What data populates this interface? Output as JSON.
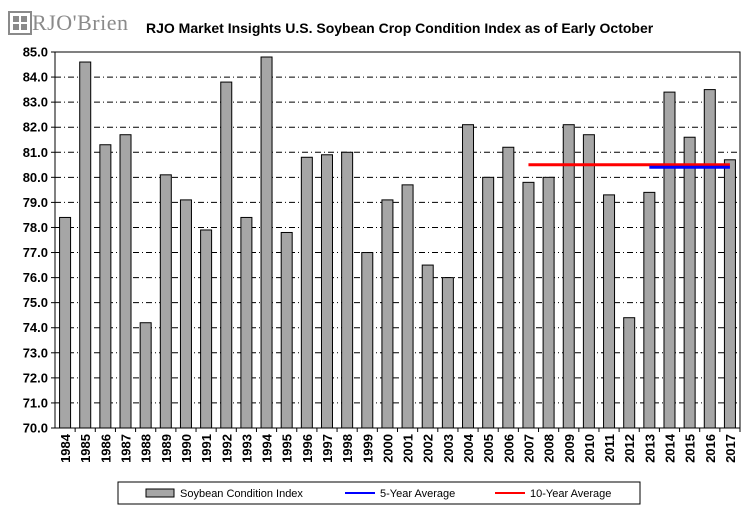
{
  "header": {
    "logo_text": "RJO'Brien",
    "title": "RJO Market Insights U.S. Soybean Crop Condition Index as of Early October"
  },
  "colors": {
    "bar_fill": "#a6a6a6",
    "bar_stroke": "#000000",
    "five_year": "#0000ff",
    "ten_year": "#ff0000",
    "logo_mark": "#8a8a8a"
  },
  "chart_data": {
    "type": "bar",
    "title": "RJO Market Insights U.S. Soybean Crop Condition Index as of Early October",
    "xlabel": "",
    "ylabel": "",
    "ylim": [
      70.0,
      85.0
    ],
    "yticks": [
      "70.0",
      "71.0",
      "72.0",
      "73.0",
      "74.0",
      "75.0",
      "76.0",
      "77.0",
      "78.0",
      "79.0",
      "80.0",
      "81.0",
      "82.0",
      "83.0",
      "84.0",
      "85.0"
    ],
    "grid": true,
    "legend_position": "bottom",
    "categories": [
      "1984",
      "1985",
      "1986",
      "1987",
      "1988",
      "1989",
      "1990",
      "1991",
      "1992",
      "1993",
      "1994",
      "1995",
      "1996",
      "1997",
      "1998",
      "1999",
      "2000",
      "2001",
      "2002",
      "2003",
      "2004",
      "2005",
      "2006",
      "2007",
      "2008",
      "2009",
      "2010",
      "2011",
      "2012",
      "2013",
      "2014",
      "2015",
      "2016",
      "2017"
    ],
    "series": [
      {
        "name": "Soybean Condition Index",
        "type": "bar",
        "values": [
          78.4,
          84.6,
          81.3,
          81.7,
          74.2,
          80.1,
          79.1,
          77.9,
          83.8,
          78.4,
          84.8,
          77.8,
          80.8,
          80.9,
          81.0,
          77.0,
          79.1,
          79.7,
          76.5,
          76.0,
          82.1,
          80.0,
          81.2,
          79.8,
          80.0,
          82.1,
          81.7,
          79.3,
          74.4,
          79.4,
          83.4,
          81.6,
          83.5,
          80.7
        ]
      },
      {
        "name": "5-Year Average",
        "type": "line",
        "x_start": "2013",
        "x_end": "2017",
        "value": 80.4
      },
      {
        "name": "10-Year Average",
        "type": "line",
        "x_start": "2007",
        "x_end": "2017",
        "value": 80.5
      }
    ]
  }
}
